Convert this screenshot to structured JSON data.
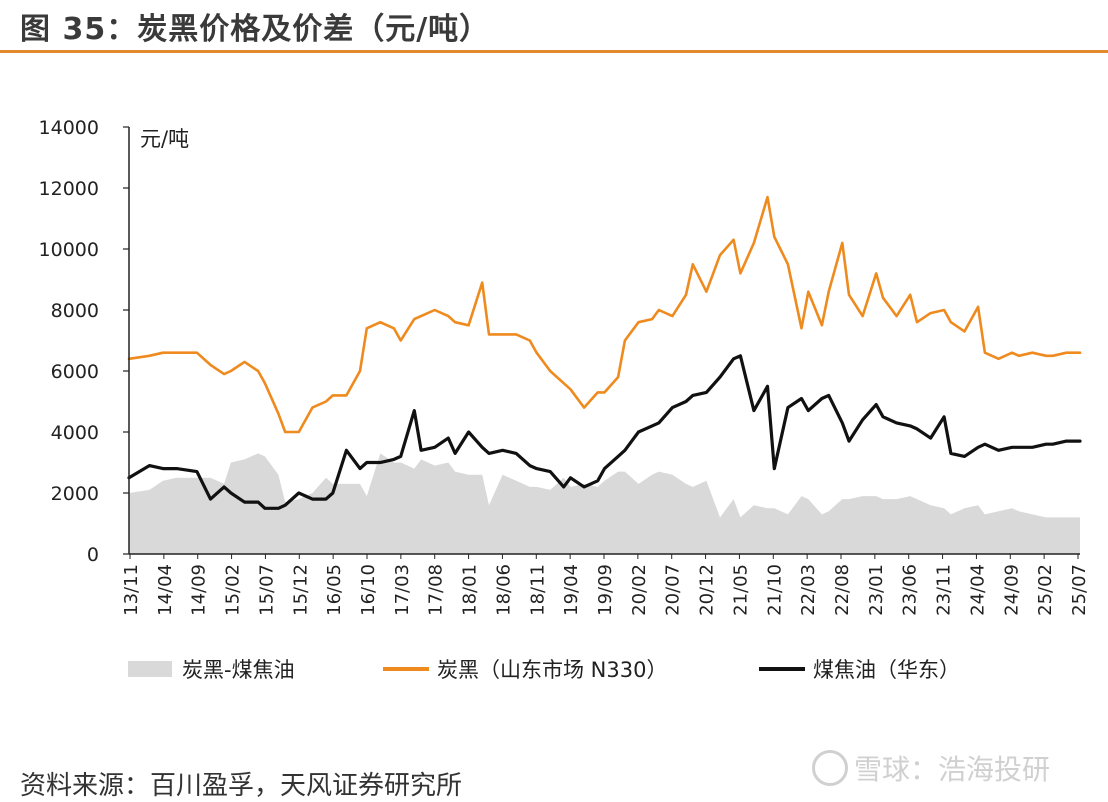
{
  "title": "图 35：炭黑价格及价差（元/吨）",
  "source": "资料来源：百川盈孚，天风证券研究所",
  "watermark": "雪球：浩海投研",
  "watermark_icon": "snowball-logo-icon",
  "colors": {
    "accent": "#e08a2c",
    "carbon_black": "#ee8a1e",
    "coal_tar": "#111111",
    "spread": "#d9d9d9"
  },
  "chart_data": {
    "type": "line",
    "ylabel": "元/吨",
    "ylim": [
      0,
      14000
    ],
    "yticks": [
      0,
      2000,
      4000,
      6000,
      8000,
      10000,
      12000,
      14000
    ],
    "xticks": [
      "13/11",
      "14/04",
      "14/09",
      "15/02",
      "15/07",
      "15/12",
      "16/05",
      "16/10",
      "17/03",
      "17/08",
      "18/01",
      "18/06",
      "18/11",
      "19/04",
      "19/09",
      "20/02",
      "20/07",
      "20/12",
      "21/05",
      "21/10",
      "22/03",
      "22/08",
      "23/01",
      "23/06",
      "23/11",
      "24/04",
      "24/09",
      "25/02",
      "25/07"
    ],
    "x": [
      "2013-11",
      "2014-02",
      "2014-04",
      "2014-06",
      "2014-09",
      "2014-11",
      "2015-01",
      "2015-02",
      "2015-04",
      "2015-06",
      "2015-07",
      "2015-09",
      "2015-10",
      "2015-12",
      "2016-02",
      "2016-04",
      "2016-05",
      "2016-07",
      "2016-09",
      "2016-10",
      "2016-12",
      "2017-02",
      "2017-03",
      "2017-05",
      "2017-06",
      "2017-08",
      "2017-10",
      "2017-11",
      "2018-01",
      "2018-03",
      "2018-04",
      "2018-06",
      "2018-08",
      "2018-10",
      "2018-11",
      "2019-01",
      "2019-03",
      "2019-04",
      "2019-06",
      "2019-08",
      "2019-09",
      "2019-11",
      "2019-12",
      "2020-02",
      "2020-04",
      "2020-05",
      "2020-07",
      "2020-09",
      "2020-10",
      "2020-12",
      "2021-02",
      "2021-04",
      "2021-05",
      "2021-07",
      "2021-09",
      "2021-10",
      "2021-12",
      "2022-02",
      "2022-03",
      "2022-05",
      "2022-06",
      "2022-08",
      "2022-09",
      "2022-11",
      "2023-01",
      "2023-02",
      "2023-04",
      "2023-06",
      "2023-07",
      "2023-09",
      "2023-11",
      "2023-12",
      "2024-02",
      "2024-04",
      "2024-05",
      "2024-07",
      "2024-09",
      "2024-10",
      "2024-12",
      "2025-02",
      "2025-03",
      "2025-05",
      "2025-07"
    ],
    "series": [
      {
        "name": "炭黑（山东市场 N330）",
        "kind": "line",
        "values": [
          6400,
          6500,
          6600,
          6600,
          6600,
          6200,
          5900,
          6000,
          6300,
          6000,
          5600,
          4600,
          4000,
          4000,
          4800,
          5000,
          5200,
          5200,
          6000,
          7400,
          7600,
          7400,
          7000,
          7700,
          7800,
          8000,
          7800,
          7600,
          7500,
          8900,
          7200,
          7200,
          7200,
          7000,
          6600,
          6000,
          5600,
          5400,
          4800,
          5300,
          5300,
          5800,
          7000,
          7600,
          7700,
          8000,
          7800,
          8500,
          9500,
          8600,
          9800,
          10300,
          9200,
          10200,
          11700,
          10400,
          9500,
          7400,
          8600,
          7500,
          8600,
          10200,
          8500,
          7800,
          9200,
          8400,
          7800,
          8500,
          7600,
          7900,
          8000,
          7600,
          7300,
          8100,
          6600,
          6400,
          6600,
          6500,
          6600,
          6500,
          6500,
          6600,
          6600
        ]
      },
      {
        "name": "煤焦油（华东）",
        "kind": "line",
        "values": [
          2500,
          2900,
          2800,
          2800,
          2700,
          1800,
          2200,
          2000,
          1700,
          1700,
          1500,
          1500,
          1600,
          2000,
          1800,
          1800,
          2000,
          3400,
          2800,
          3000,
          3000,
          3100,
          3200,
          4700,
          3400,
          3500,
          3800,
          3300,
          4000,
          3500,
          3300,
          3400,
          3300,
          2900,
          2800,
          2700,
          2200,
          2500,
          2200,
          2400,
          2800,
          3200,
          3400,
          4000,
          4200,
          4300,
          4800,
          5000,
          5200,
          5300,
          5800,
          6400,
          6500,
          4700,
          5500,
          2800,
          4800,
          5100,
          4700,
          5100,
          5200,
          4300,
          3700,
          4400,
          4900,
          4500,
          4300,
          4200,
          4100,
          3800,
          4500,
          3300,
          3200,
          3500,
          3600,
          3400,
          3500,
          3500,
          3500,
          3600,
          3600,
          3700,
          3700
        ]
      },
      {
        "name": "炭黑-煤焦油",
        "kind": "area",
        "values": [
          2000,
          2100,
          2400,
          2500,
          2500,
          2500,
          2300,
          3000,
          3100,
          3300,
          3200,
          2600,
          1700,
          1800,
          2000,
          2500,
          2300,
          2300,
          2300,
          1900,
          3300,
          3000,
          3000,
          2800,
          3100,
          2900,
          3000,
          2700,
          2600,
          2600,
          1600,
          2600,
          2400,
          2200,
          2200,
          2100,
          2500,
          2200,
          2300,
          2200,
          2400,
          2700,
          2700,
          2300,
          2600,
          2700,
          2600,
          2300,
          2200,
          2400,
          1200,
          1800,
          1200,
          1600,
          1500,
          1500,
          1300,
          1900,
          1800,
          1300,
          1400,
          1800,
          1800,
          1900,
          1900,
          1800,
          1800,
          1900,
          1800,
          1600,
          1500,
          1300,
          1500,
          1600,
          1300,
          1400,
          1500,
          1400,
          1300,
          1200,
          1200,
          1200,
          1200
        ]
      }
    ],
    "legend": {
      "position": "bottom",
      "items": [
        "炭黑-煤焦油",
        "炭黑（山东市场 N330）",
        "煤焦油（华东）"
      ]
    },
    "grid": false
  }
}
